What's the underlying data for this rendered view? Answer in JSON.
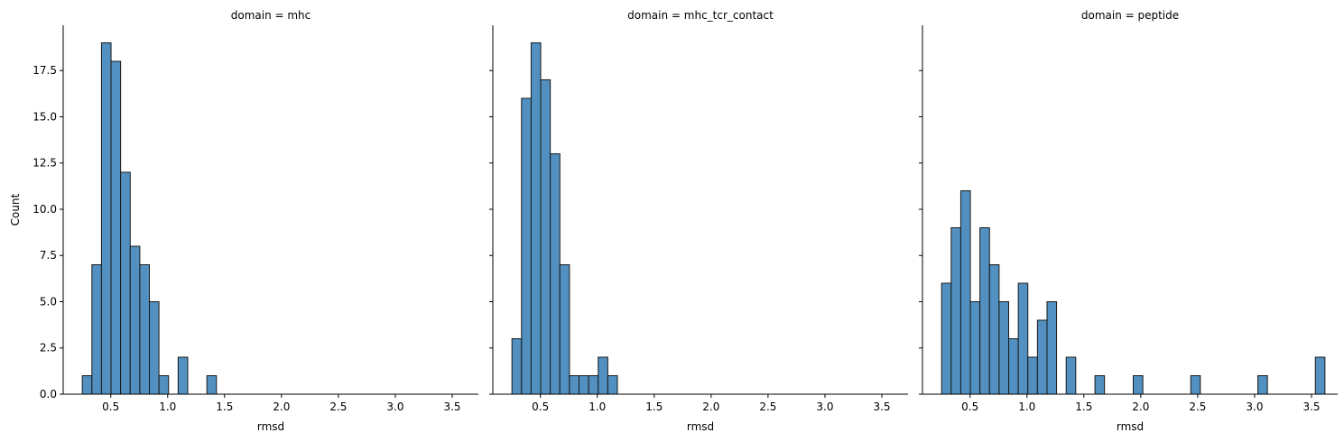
{
  "chart_data": [
    {
      "type": "bar",
      "title": "domain = mhc",
      "xlabel": "rmsd",
      "ylabel": "Count",
      "xlim": [
        0.082,
        3.73
      ],
      "ylim": [
        0,
        19.95
      ],
      "grid": false,
      "xticks": [
        "0.5",
        "1.0",
        "1.5",
        "2.0",
        "2.5",
        "3.0",
        "3.5"
      ],
      "yticks": [
        "0.0",
        "2.5",
        "5.0",
        "7.5",
        "10.0",
        "12.5",
        "15.0",
        "17.5"
      ],
      "bin_start": 0.25,
      "bin_width": 0.0842,
      "values": [
        1,
        7,
        19,
        18,
        12,
        8,
        7,
        5,
        1,
        0,
        2,
        0,
        0,
        1,
        0,
        0,
        0,
        0,
        0,
        0,
        0,
        0,
        0,
        0,
        0,
        0,
        0,
        0,
        0,
        0,
        0,
        0,
        0,
        0,
        0,
        0,
        0,
        0,
        0,
        0
      ]
    },
    {
      "type": "bar",
      "title": "domain = mhc_tcr_contact",
      "xlabel": "rmsd",
      "ylabel": "",
      "xlim": [
        0.082,
        3.73
      ],
      "ylim": [
        0,
        19.95
      ],
      "grid": false,
      "xticks": [
        "0.5",
        "1.0",
        "1.5",
        "2.0",
        "2.5",
        "3.0",
        "3.5"
      ],
      "yticks": [],
      "bin_start": 0.25,
      "bin_width": 0.0842,
      "values": [
        3,
        16,
        19,
        17,
        13,
        7,
        1,
        1,
        1,
        2,
        1,
        0,
        0,
        0,
        0,
        0,
        0,
        0,
        0,
        0,
        0,
        0,
        0,
        0,
        0,
        0,
        0,
        0,
        0,
        0,
        0,
        0,
        0,
        0,
        0,
        0,
        0,
        0,
        0,
        0
      ]
    },
    {
      "type": "bar",
      "title": "domain = peptide",
      "xlabel": "rmsd",
      "ylabel": "",
      "xlim": [
        0.082,
        3.73
      ],
      "ylim": [
        0,
        19.95
      ],
      "grid": false,
      "xticks": [
        "0.5",
        "1.0",
        "1.5",
        "2.0",
        "2.5",
        "3.0",
        "3.5"
      ],
      "yticks": [],
      "bin_start": 0.25,
      "bin_width": 0.0842,
      "values": [
        6,
        9,
        11,
        5,
        9,
        7,
        5,
        3,
        6,
        2,
        4,
        5,
        0,
        2,
        0,
        0,
        1,
        0,
        0,
        0,
        1,
        0,
        0,
        0,
        0,
        0,
        1,
        0,
        0,
        0,
        0,
        0,
        0,
        1,
        0,
        0,
        0,
        0,
        0,
        2
      ]
    }
  ]
}
